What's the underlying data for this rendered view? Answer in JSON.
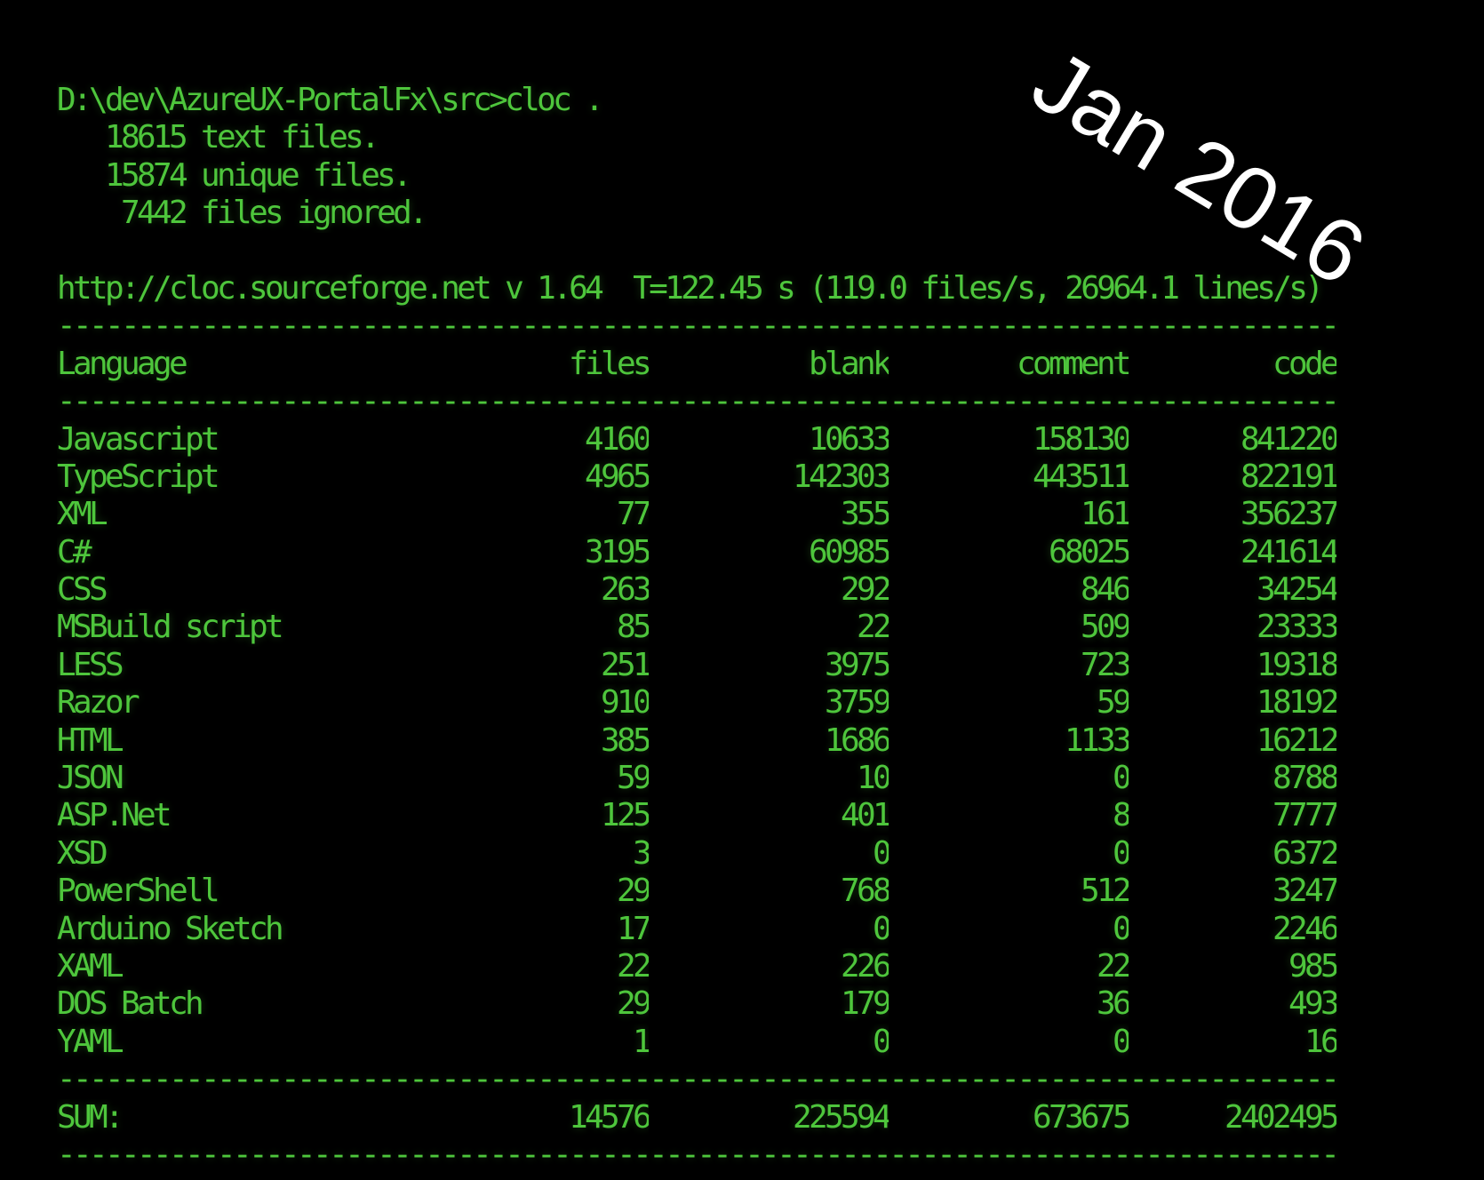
{
  "date_overlay": {
    "text": "Jan 2016",
    "color": "#ffffff"
  },
  "console": {
    "colors": {
      "background": "#000000",
      "text_green": "#4ec63c",
      "overlay_white": "#ffffff"
    },
    "prompt_line": "D:\\dev\\AzureUX-PortalFx\\src>cloc .",
    "file_counts": [
      "   18615 text files.",
      "   15874 unique files.",
      "    7442 files ignored."
    ],
    "tool_info_line": "http://cloc.sourceforge.net v 1.64  T=122.45 s (119.0 files/s, 26964.1 lines/s)",
    "separator": "--------------------------------------------------------------------------------",
    "table": {
      "headers": {
        "language": "Language",
        "files": "files",
        "blank": "blank",
        "comment": "comment",
        "code": "code"
      },
      "rows": [
        {
          "language": "Javascript",
          "files": "4160",
          "blank": "10633",
          "comment": "158130",
          "code": "841220"
        },
        {
          "language": "TypeScript",
          "files": "4965",
          "blank": "142303",
          "comment": "443511",
          "code": "822191"
        },
        {
          "language": "XML",
          "files": "77",
          "blank": "355",
          "comment": "161",
          "code": "356237"
        },
        {
          "language": "C#",
          "files": "3195",
          "blank": "60985",
          "comment": "68025",
          "code": "241614"
        },
        {
          "language": "CSS",
          "files": "263",
          "blank": "292",
          "comment": "846",
          "code": "34254"
        },
        {
          "language": "MSBuild script",
          "files": "85",
          "blank": "22",
          "comment": "509",
          "code": "23333"
        },
        {
          "language": "LESS",
          "files": "251",
          "blank": "3975",
          "comment": "723",
          "code": "19318"
        },
        {
          "language": "Razor",
          "files": "910",
          "blank": "3759",
          "comment": "59",
          "code": "18192"
        },
        {
          "language": "HTML",
          "files": "385",
          "blank": "1686",
          "comment": "1133",
          "code": "16212"
        },
        {
          "language": "JSON",
          "files": "59",
          "blank": "10",
          "comment": "0",
          "code": "8788"
        },
        {
          "language": "ASP.Net",
          "files": "125",
          "blank": "401",
          "comment": "8",
          "code": "7777"
        },
        {
          "language": "XSD",
          "files": "3",
          "blank": "0",
          "comment": "0",
          "code": "6372"
        },
        {
          "language": "PowerShell",
          "files": "29",
          "blank": "768",
          "comment": "512",
          "code": "3247"
        },
        {
          "language": "Arduino Sketch",
          "files": "17",
          "blank": "0",
          "comment": "0",
          "code": "2246"
        },
        {
          "language": "XAML",
          "files": "22",
          "blank": "226",
          "comment": "22",
          "code": "985"
        },
        {
          "language": "DOS Batch",
          "files": "29",
          "blank": "179",
          "comment": "36",
          "code": "493"
        },
        {
          "language": "YAML",
          "files": "1",
          "blank": "0",
          "comment": "0",
          "code": "16"
        }
      ],
      "sum": {
        "label": "SUM:",
        "files": "14576",
        "blank": "225594",
        "comment": "673675",
        "code": "2402495"
      }
    }
  }
}
